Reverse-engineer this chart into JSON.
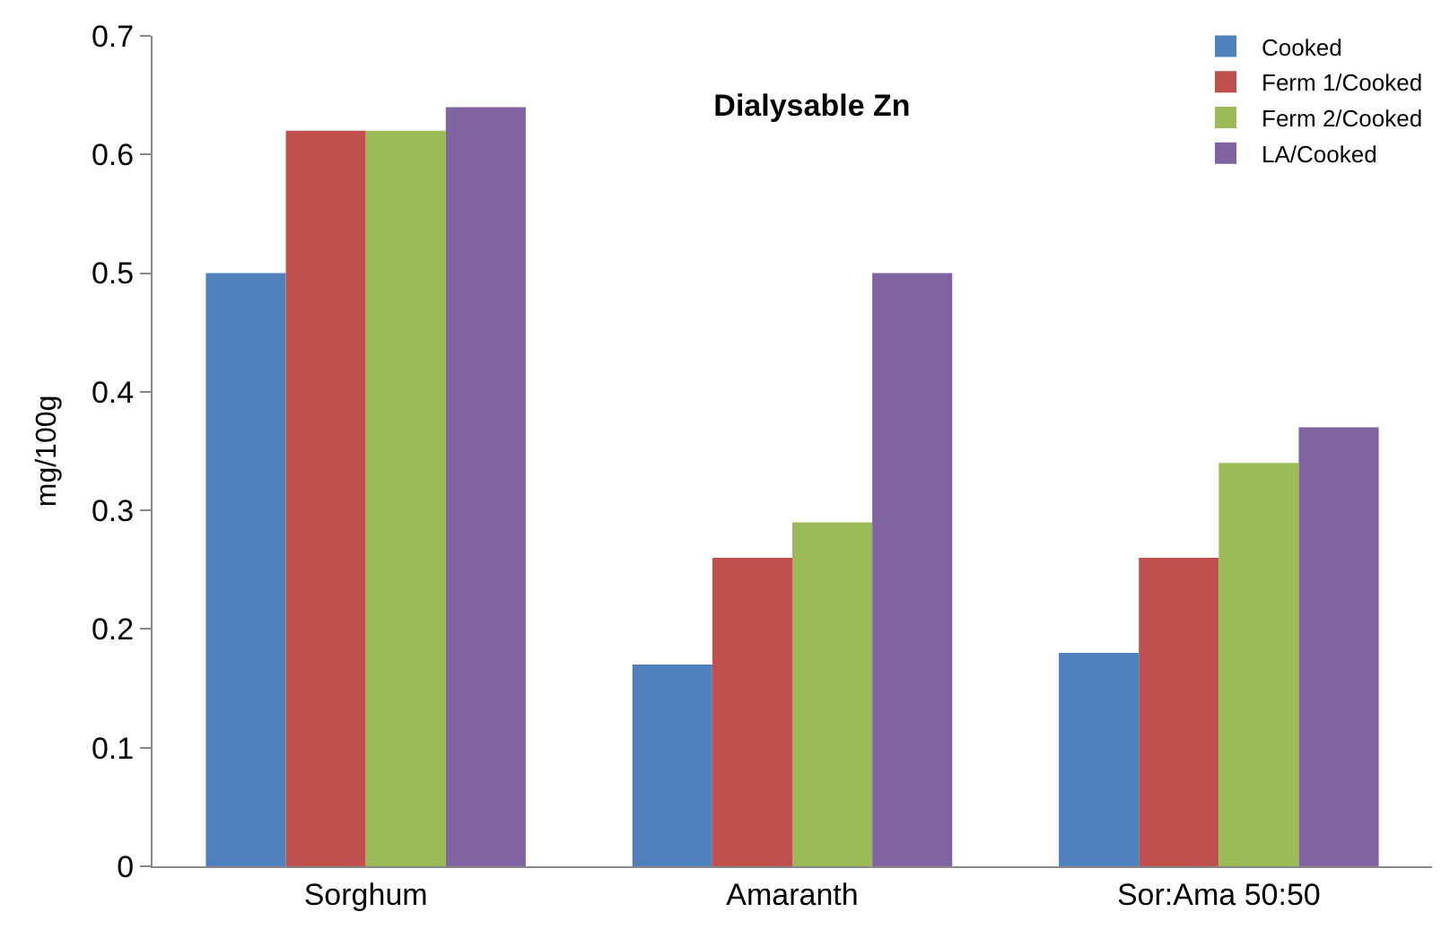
{
  "chart_data": {
    "type": "bar",
    "title": "Dialysable Zn",
    "ylabel": "mg/100g",
    "categories": [
      "Sorghum",
      "Amaranth",
      "Sor:Ama 50:50"
    ],
    "series": [
      {
        "name": "Cooked",
        "color": "#4f81bd",
        "values": [
          0.5,
          0.17,
          0.18
        ]
      },
      {
        "name": "Ferm 1/Cooked",
        "color": "#c0504d",
        "values": [
          0.62,
          0.26,
          0.26
        ]
      },
      {
        "name": "Ferm 2/Cooked",
        "color": "#9bbb59",
        "values": [
          0.62,
          0.29,
          0.34
        ]
      },
      {
        "name": "LA/Cooked",
        "color": "#8064a2",
        "values": [
          0.64,
          0.5,
          0.37
        ]
      }
    ],
    "ylim": [
      0,
      0.7
    ],
    "yticks": [
      {
        "value": 0,
        "label": "0"
      },
      0.1,
      0.2,
      0.3,
      0.4,
      0.5,
      0.6,
      0.7
    ],
    "grid": false,
    "legend": "top right"
  }
}
